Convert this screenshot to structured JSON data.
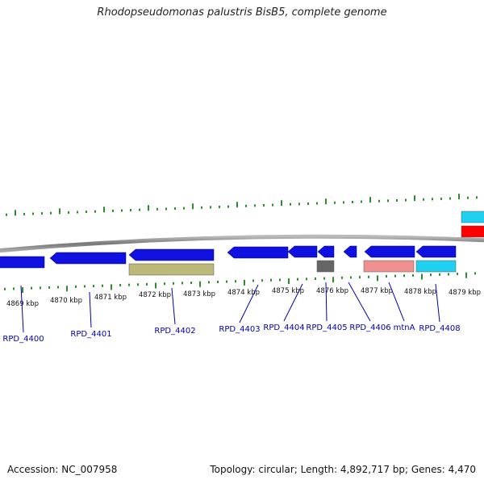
{
  "title": "Rhodopseudomonas palustris BisB5, complete genome",
  "footer": {
    "accession": "Accession: NC_007958",
    "summary": "Topology: circular; Length: 4,892,717 bp; Genes: 4,470"
  },
  "colors": {
    "backbone": "#888888",
    "tick": "#2e8b2e",
    "gene_blue": "#1010e0",
    "olive": "#bcb878",
    "gray": "#666666",
    "pink": "#f09090",
    "cyan": "#20d0f0",
    "red": "#ff0000",
    "label": "#0000aa"
  },
  "kbp_ticks": [
    "4869 kbp",
    "4870 kbp",
    "4871 kbp",
    "4872 kbp",
    "4873 kbp",
    "4874 kbp",
    "4875 kbp",
    "4876 kbp",
    "4877 kbp",
    "4878 kbp",
    "4879 kbp"
  ],
  "gene_labels": [
    "RPD_4400",
    "RPD_4401",
    "RPD_4402",
    "RPD_4403",
    "RPD_4404",
    "RPD_4405",
    "RPD_4406",
    "mtnA",
    "RPD_4408"
  ]
}
